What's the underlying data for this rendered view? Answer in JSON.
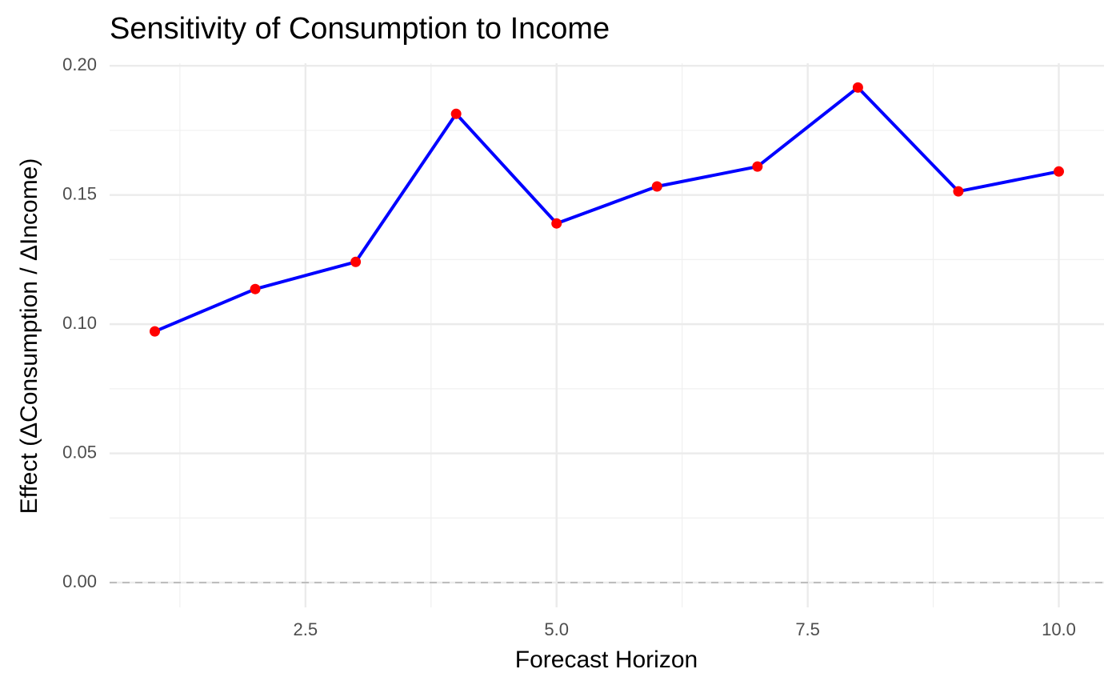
{
  "chart_data": {
    "type": "line",
    "title": "Sensitivity of Consumption to Income",
    "x_label": "Forecast Horizon",
    "y_label": "Effect (ΔConsumption / ΔIncome)",
    "x": [
      1,
      2,
      3,
      4,
      5,
      6,
      7,
      8,
      9,
      10
    ],
    "series": [
      {
        "values": [
          0.0972,
          0.1136,
          0.1241,
          0.1814,
          0.139,
          0.1533,
          0.161,
          0.1916,
          0.1514,
          0.1591
        ],
        "color": "#0000ff",
        "marker_color": "#ff0000"
      }
    ],
    "xlim": [
      0.55,
      10.45
    ],
    "ylim": [
      -0.0096,
      0.201
    ],
    "xticks": [
      2.5,
      {
        "value": 5,
        "label": "5.0"
      },
      7.5,
      {
        "value": 10,
        "label": "10.0"
      }
    ],
    "yticks": [
      {
        "value": 0,
        "label": "0.00"
      },
      {
        "value": 0.05,
        "label": "0.05"
      },
      {
        "value": 0.1,
        "label": "0.10"
      },
      {
        "value": 0.15,
        "label": "0.15"
      },
      {
        "value": 0.2,
        "label": "0.20"
      }
    ],
    "reference_line": {
      "value": 0,
      "color": "#bdbdbd"
    },
    "grid": true,
    "minor_grid": true
  }
}
